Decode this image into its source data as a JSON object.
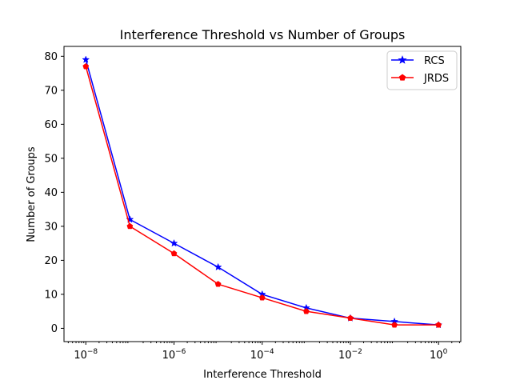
{
  "chart_data": {
    "type": "line",
    "title": "Interference Threshold vs Number of Groups",
    "xlabel": "Interference Threshold",
    "ylabel": "Number of Groups",
    "xscale": "log",
    "x": [
      1e-08,
      1e-07,
      1e-06,
      1e-05,
      0.0001,
      0.001,
      0.01,
      0.1,
      1
    ],
    "xlim": [
      3.2e-09,
      3.2
    ],
    "ylim": [
      -3.9,
      82.9
    ],
    "x_ticks": [
      {
        "value": 1e-08,
        "base": "10",
        "exp": "−8"
      },
      {
        "value": 1e-06,
        "base": "10",
        "exp": "−6"
      },
      {
        "value": 0.0001,
        "base": "10",
        "exp": "−4"
      },
      {
        "value": 0.01,
        "base": "10",
        "exp": "−2"
      },
      {
        "value": 1,
        "base": "10",
        "exp": "0"
      }
    ],
    "y_ticks": [
      0,
      10,
      20,
      30,
      40,
      50,
      60,
      70,
      80
    ],
    "grid": false,
    "legend": {
      "placement": "top-right"
    },
    "series": [
      {
        "name": "RCS",
        "color": "#0000ff",
        "marker": "star",
        "values": [
          79,
          32,
          25,
          18,
          10,
          6,
          3,
          2,
          1
        ]
      },
      {
        "name": "JRDS",
        "color": "#ff0000",
        "marker": "pentagon",
        "values": [
          77,
          30,
          22,
          13,
          9,
          5,
          3,
          1,
          1
        ]
      }
    ]
  }
}
